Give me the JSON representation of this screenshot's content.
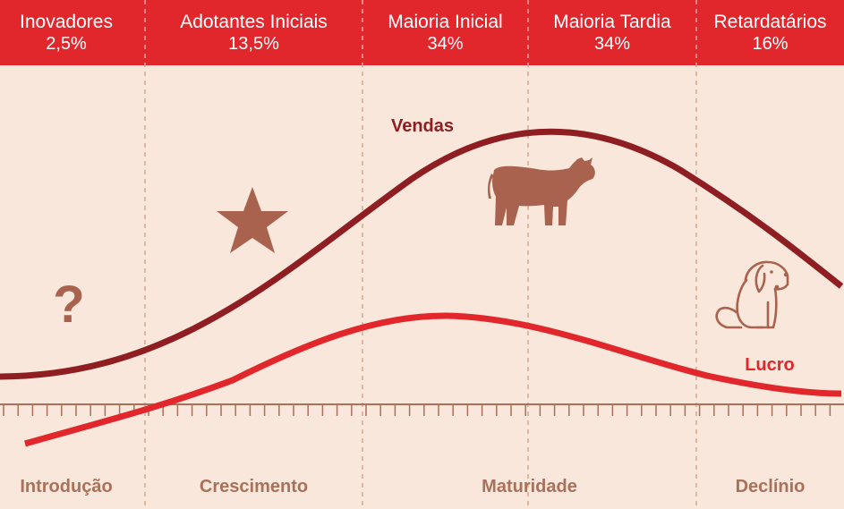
{
  "segments": [
    {
      "title": "Inovadores",
      "pct": "2,5%"
    },
    {
      "title": "Adotantes Iniciais",
      "pct": "13,5%"
    },
    {
      "title": "Maioria Inicial",
      "pct": "34%"
    },
    {
      "title": "Maioria Tardia",
      "pct": "34%"
    },
    {
      "title": "Retardatários",
      "pct": "16%"
    }
  ],
  "phases": [
    "Introdução",
    "Crescimento",
    "Maturidade",
    "Declínio"
  ],
  "curves": {
    "sales_label": "Vendas",
    "profit_label": "Lucro"
  },
  "icons": {
    "question": "?",
    "star": "star-icon",
    "cow": "cow-icon",
    "dog": "dog-icon"
  },
  "colors": {
    "header": "#e1262c",
    "background": "#f8e7da",
    "sales": "#8f1e22",
    "profit": "#e1262c",
    "icon": "#a8624e",
    "phase_text": "#a9715a"
  }
}
